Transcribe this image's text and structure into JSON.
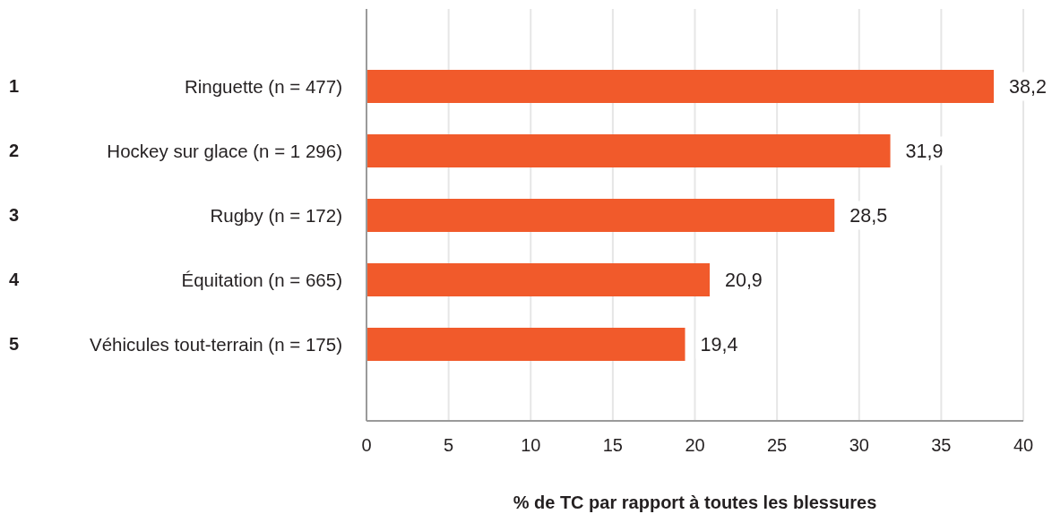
{
  "chart_data": {
    "type": "bar",
    "orientation": "horizontal",
    "categories": [
      "Ringuette (n = 477)",
      "Hockey sur glace (n = 1 296)",
      "Rugby (n = 172)",
      "Équitation (n = 665)",
      "Véhicules tout-terrain (n = 175)"
    ],
    "values": [
      38.2,
      31.9,
      28.5,
      20.9,
      19.4
    ],
    "color": "#f15a2b",
    "value_labels": [
      "38,2",
      "31,9",
      "28,5",
      "20,9",
      "19,4"
    ],
    "xlabel": "% de TC par rapport à toutes les blessures",
    "xlim": [
      0,
      40
    ],
    "xticks": [
      0,
      5,
      10,
      15,
      20,
      25,
      30,
      35,
      40
    ],
    "grid": "x",
    "annotations": [
      "1",
      "2",
      "3",
      "4",
      "5"
    ]
  }
}
